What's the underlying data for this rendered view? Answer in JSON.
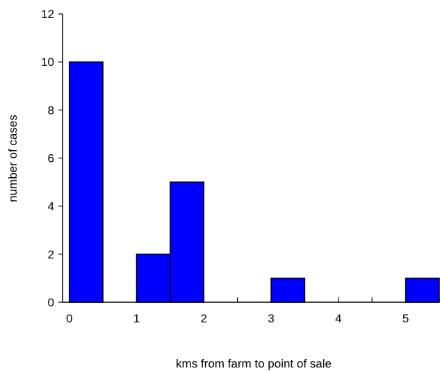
{
  "chart_data": {
    "type": "bar",
    "subtype": "histogram",
    "title": "",
    "xlabel": "kms from farm to point of sale",
    "ylabel": "number of cases",
    "bin_width": 0.5,
    "bins": [
      {
        "x0": 0.0,
        "x1": 0.5,
        "count": 10
      },
      {
        "x0": 0.5,
        "x1": 1.0,
        "count": 0
      },
      {
        "x0": 1.0,
        "x1": 1.5,
        "count": 2
      },
      {
        "x0": 1.5,
        "x1": 2.0,
        "count": 5
      },
      {
        "x0": 2.0,
        "x1": 2.5,
        "count": 0
      },
      {
        "x0": 2.5,
        "x1": 3.0,
        "count": 0
      },
      {
        "x0": 3.0,
        "x1": 3.5,
        "count": 1
      },
      {
        "x0": 3.5,
        "x1": 4.0,
        "count": 0
      },
      {
        "x0": 4.0,
        "x1": 4.5,
        "count": 0
      },
      {
        "x0": 4.5,
        "x1": 5.0,
        "count": 0
      },
      {
        "x0": 5.0,
        "x1": 5.5,
        "count": 1
      }
    ],
    "xlim": [
      -0.1,
      5.5
    ],
    "ylim": [
      0,
      12
    ],
    "xticks": [
      "0",
      "1",
      "2",
      "3",
      "4",
      "5"
    ],
    "yticks": [
      "0",
      "2",
      "4",
      "6",
      "8",
      "10",
      "12"
    ],
    "grid": false,
    "legend": "none",
    "colors": {
      "bar_fill": "#0000ff",
      "bar_stroke": "#000000",
      "axis": "#000000"
    }
  }
}
